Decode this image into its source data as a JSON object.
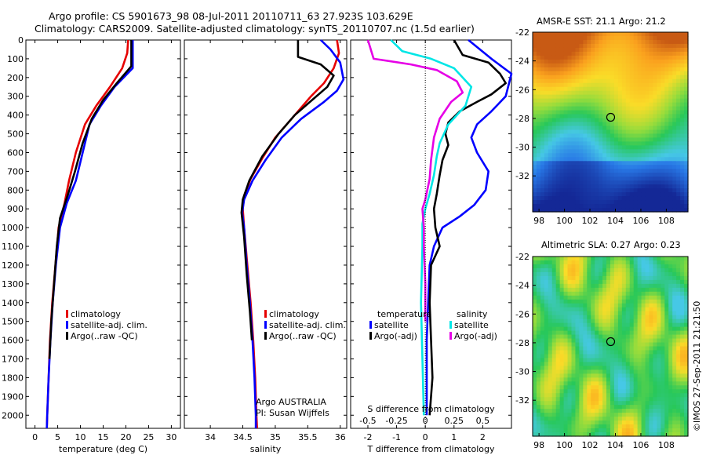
{
  "header": {
    "line1": "Argo profile: CS 5901673_98 08-Jul-2011 20110711_63 27.923S 103.629E",
    "line2": "Climatology: CARS2009. Satellite-adjusted climatology: synTS_20110707.nc (1.5d earlier)"
  },
  "timestamp": "©IMOS 27-Sep-2011 21:21:50",
  "colors": {
    "red": "#e60000",
    "blue": "#0000ff",
    "black": "#000000",
    "cyan": "#00e6e6",
    "magenta": "#e600e6"
  },
  "depth_ticks": [
    0,
    100,
    200,
    300,
    400,
    500,
    600,
    700,
    800,
    900,
    1000,
    1100,
    1200,
    1300,
    1400,
    1500,
    1600,
    1700,
    1800,
    1900,
    2000
  ],
  "chart_data": [
    {
      "type": "line",
      "id": "temperature",
      "xlabel": "temperature (deg C)",
      "ylabel": "",
      "xlim": [
        -2,
        32
      ],
      "ylim": [
        2070,
        0
      ],
      "xticks": [
        0,
        5,
        10,
        15,
        20,
        25,
        30
      ],
      "legend": [
        "climatology",
        "satellite-adj. clim.",
        "Argo(..raw -QC)"
      ],
      "series": [
        {
          "name": "climatology",
          "color": "red",
          "points": [
            [
              20.5,
              0
            ],
            [
              20.3,
              70
            ],
            [
              19.2,
              150
            ],
            [
              16.5,
              250
            ],
            [
              13.5,
              350
            ],
            [
              11,
              450
            ],
            [
              9,
              600
            ],
            [
              7.5,
              750
            ],
            [
              6.5,
              870
            ],
            [
              5.2,
              1000
            ],
            [
              4.5,
              1200
            ],
            [
              3.8,
              1400
            ],
            [
              3.3,
              1600
            ],
            [
              3.0,
              1800
            ],
            [
              2.7,
              2000
            ],
            [
              2.6,
              2070
            ]
          ]
        },
        {
          "name": "satellite-adj. clim.",
          "color": "blue",
          "points": [
            [
              21.5,
              0
            ],
            [
              21.5,
              150
            ],
            [
              17.5,
              250
            ],
            [
              14.5,
              350
            ],
            [
              12,
              450
            ],
            [
              10.5,
              600
            ],
            [
              9,
              750
            ],
            [
              7,
              870
            ],
            [
              5.5,
              1000
            ],
            [
              4.6,
              1200
            ],
            [
              3.9,
              1400
            ],
            [
              3.4,
              1600
            ],
            [
              3.0,
              1800
            ],
            [
              2.7,
              2000
            ],
            [
              2.6,
              2070
            ]
          ]
        },
        {
          "name": "Argo(..raw -QC)",
          "color": "black",
          "points": [
            [
              21.2,
              0
            ],
            [
              21.2,
              140
            ],
            [
              18,
              230
            ],
            [
              15,
              320
            ],
            [
              12.5,
              420
            ],
            [
              10.5,
              550
            ],
            [
              8.8,
              700
            ],
            [
              7.3,
              820
            ],
            [
              5.5,
              950
            ],
            [
              4.8,
              1100
            ],
            [
              4.2,
              1300
            ],
            [
              3.6,
              1500
            ],
            [
              3.2,
              1700
            ]
          ]
        }
      ]
    },
    {
      "type": "line",
      "id": "salinity",
      "xlabel": "salinity",
      "xlim": [
        33.6,
        36.1
      ],
      "ylim": [
        2070,
        0
      ],
      "xticks": [
        34,
        34.5,
        35,
        35.5,
        36
      ],
      "legend": [
        "climatology",
        "satellite-adj. clim.",
        "Argo(..raw -QC)"
      ],
      "annotation": [
        "Argo AUSTRALIA",
        "PI: Susan Wijffels"
      ],
      "series": [
        {
          "name": "climatology",
          "color": "red",
          "points": [
            [
              35.95,
              0
            ],
            [
              35.98,
              70
            ],
            [
              35.9,
              150
            ],
            [
              35.75,
              230
            ],
            [
              35.55,
              300
            ],
            [
              35.3,
              400
            ],
            [
              35.0,
              520
            ],
            [
              34.8,
              630
            ],
            [
              34.62,
              740
            ],
            [
              34.52,
              830
            ],
            [
              34.5,
              900
            ],
            [
              34.52,
              1000
            ],
            [
              34.57,
              1200
            ],
            [
              34.62,
              1400
            ],
            [
              34.66,
              1600
            ],
            [
              34.69,
              1800
            ],
            [
              34.71,
              2000
            ],
            [
              34.72,
              2070
            ]
          ]
        },
        {
          "name": "satellite-adj. clim.",
          "color": "blue",
          "points": [
            [
              35.7,
              0
            ],
            [
              35.85,
              50
            ],
            [
              36.0,
              120
            ],
            [
              36.05,
              210
            ],
            [
              35.95,
              270
            ],
            [
              35.75,
              330
            ],
            [
              35.4,
              420
            ],
            [
              35.1,
              520
            ],
            [
              34.85,
              640
            ],
            [
              34.65,
              750
            ],
            [
              34.52,
              850
            ],
            [
              34.49,
              920
            ],
            [
              34.52,
              1000
            ],
            [
              34.56,
              1200
            ],
            [
              34.61,
              1400
            ],
            [
              34.65,
              1600
            ],
            [
              34.68,
              1800
            ],
            [
              34.7,
              2000
            ],
            [
              34.7,
              2070
            ]
          ]
        },
        {
          "name": "Argo(..raw -QC)",
          "color": "black",
          "points": [
            [
              35.35,
              0
            ],
            [
              35.35,
              90
            ],
            [
              35.7,
              130
            ],
            [
              35.9,
              190
            ],
            [
              35.8,
              250
            ],
            [
              35.6,
              310
            ],
            [
              35.3,
              400
            ],
            [
              35.05,
              500
            ],
            [
              34.8,
              620
            ],
            [
              34.6,
              750
            ],
            [
              34.5,
              850
            ],
            [
              34.48,
              920
            ],
            [
              34.52,
              1050
            ],
            [
              34.56,
              1250
            ],
            [
              34.61,
              1450
            ],
            [
              34.64,
              1600
            ]
          ]
        }
      ]
    },
    {
      "type": "line",
      "id": "differences",
      "xlabel": "T difference from climatology",
      "x2label": "S difference from climatology",
      "xlim": [
        -2.6,
        3.0
      ],
      "ylim": [
        2070,
        0
      ],
      "xticks": [
        -2,
        -1,
        0,
        1,
        2
      ],
      "x2ticks": [
        "-0.5",
        "-0.25",
        "0",
        "0.25",
        "0.5"
      ],
      "legend": {
        "temperature": [
          "satellite",
          "Argo(-adj)"
        ],
        "salinity": [
          "satellite",
          "Argo(-adj)"
        ]
      },
      "series": [
        {
          "name": "temperature satellite",
          "color": "blue",
          "points": [
            [
              1.5,
              0
            ],
            [
              2.3,
              100
            ],
            [
              3.0,
              180
            ],
            [
              2.8,
              300
            ],
            [
              2.3,
              380
            ],
            [
              1.8,
              450
            ],
            [
              1.6,
              520
            ],
            [
              1.8,
              600
            ],
            [
              2.2,
              700
            ],
            [
              2.1,
              800
            ],
            [
              1.7,
              880
            ],
            [
              1.2,
              940
            ],
            [
              0.6,
              1000
            ],
            [
              0.3,
              1100
            ],
            [
              0.15,
              1200
            ],
            [
              0.1,
              1400
            ],
            [
              0.05,
              1600
            ],
            [
              0.05,
              1800
            ],
            [
              0.05,
              2000
            ]
          ]
        },
        {
          "name": "temperature Argo(-adj)",
          "color": "black",
          "points": [
            [
              1.0,
              0
            ],
            [
              1.3,
              80
            ],
            [
              2.2,
              120
            ],
            [
              2.6,
              180
            ],
            [
              2.8,
              230
            ],
            [
              2.3,
              290
            ],
            [
              1.8,
              330
            ],
            [
              1.2,
              380
            ],
            [
              0.8,
              440
            ],
            [
              0.7,
              500
            ],
            [
              0.8,
              560
            ],
            [
              0.6,
              640
            ],
            [
              0.5,
              720
            ],
            [
              0.4,
              820
            ],
            [
              0.3,
              900
            ],
            [
              0.35,
              1000
            ],
            [
              0.5,
              1100
            ],
            [
              0.2,
              1200
            ],
            [
              0.15,
              1400
            ],
            [
              0.2,
              1600
            ],
            [
              0.25,
              1800
            ],
            [
              0.2,
              1900
            ],
            [
              0.15,
              2000
            ]
          ]
        },
        {
          "name": "salinity satellite",
          "color": "cyan",
          "points": [
            [
              -1.2,
              0
            ],
            [
              -0.8,
              60
            ],
            [
              0.2,
              100
            ],
            [
              1.0,
              150
            ],
            [
              1.6,
              250
            ],
            [
              1.4,
              350
            ],
            [
              0.8,
              450
            ],
            [
              0.5,
              550
            ],
            [
              0.4,
              620
            ],
            [
              0.3,
              720
            ],
            [
              0.15,
              820
            ],
            [
              0.0,
              900
            ],
            [
              -0.1,
              980
            ],
            [
              -0.1,
              1100
            ],
            [
              -0.15,
              1400
            ],
            [
              -0.1,
              1700
            ],
            [
              -0.05,
              2000
            ]
          ]
        },
        {
          "name": "salinity Argo(-adj)",
          "color": "magenta",
          "points": [
            [
              -2.0,
              0
            ],
            [
              -1.8,
              100
            ],
            [
              -0.5,
              130
            ],
            [
              0.4,
              160
            ],
            [
              1.1,
              220
            ],
            [
              1.3,
              280
            ],
            [
              0.9,
              330
            ],
            [
              0.5,
              420
            ],
            [
              0.3,
              520
            ],
            [
              0.2,
              640
            ],
            [
              0.15,
              740
            ],
            [
              0.0,
              850
            ],
            [
              -0.1,
              900
            ],
            [
              -0.05,
              1000
            ],
            [
              -0.05,
              1100
            ],
            [
              0.0,
              1300
            ],
            [
              0.0,
              1500
            ]
          ]
        }
      ]
    },
    {
      "type": "heatmap",
      "id": "sst",
      "title": "AMSR-E SST: 21.1 Argo: 21.2",
      "xticks": [
        98,
        100,
        102,
        104,
        106,
        108
      ],
      "yticks": [
        -22,
        -24,
        -26,
        -28,
        -30,
        -32
      ],
      "xlim": [
        97.5,
        109.7
      ],
      "ylim": [
        -34.5,
        -22
      ],
      "marker": {
        "lon": 103.629,
        "lat": -27.923
      }
    },
    {
      "type": "heatmap",
      "id": "sla",
      "title": "Altimetric SLA: 0.27 Argo: 0.23",
      "xticks": [
        98,
        100,
        102,
        104,
        106,
        108
      ],
      "yticks": [
        -22,
        -24,
        -26,
        -28,
        -30,
        -32
      ],
      "xlim": [
        97.5,
        109.7
      ],
      "ylim": [
        -34.5,
        -22
      ],
      "marker": {
        "lon": 103.629,
        "lat": -27.923
      }
    }
  ]
}
